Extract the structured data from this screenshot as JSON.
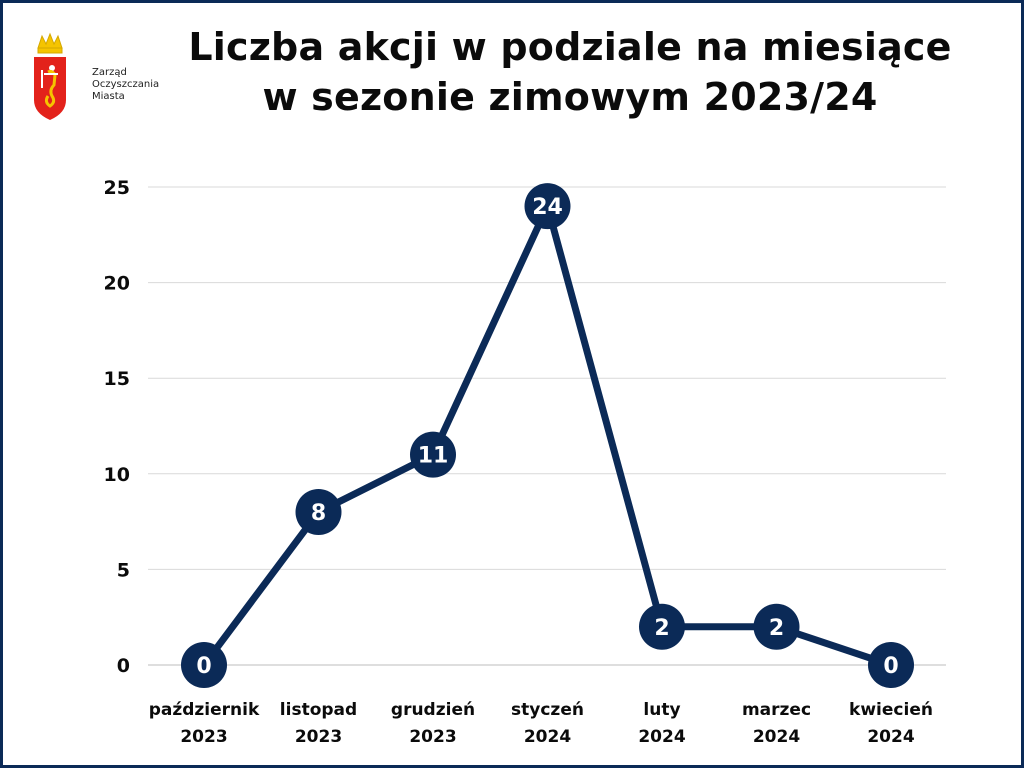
{
  "logo": {
    "text_lines": [
      "Zarząd",
      "Oczyszczania",
      "Miasta"
    ]
  },
  "title": {
    "line1": "Liczba akcji w podziale na miesiące",
    "line2": "w sezonie zimowym 2023/24"
  },
  "colors": {
    "series": "#0b2a57",
    "frame": "#0b2a57",
    "grid": "#d9d9d9",
    "text": "#0b0b0b",
    "logo_red": "#e3221b",
    "logo_gold": "#f5c400"
  },
  "chart_data": {
    "type": "line",
    "title": "Liczba akcji w podziale na miesiące w sezonie zimowym 2023/24",
    "xlabel": "",
    "ylabel": "",
    "ylim": [
      0,
      25
    ],
    "yticks": [
      0,
      5,
      10,
      15,
      20,
      25
    ],
    "grid": true,
    "categories": [
      [
        "październik",
        "2023"
      ],
      [
        "listopad",
        "2023"
      ],
      [
        "grudzień",
        "2023"
      ],
      [
        "styczeń",
        "2024"
      ],
      [
        "luty",
        "2024"
      ],
      [
        "marzec",
        "2024"
      ],
      [
        "kwiecień",
        "2024"
      ]
    ],
    "series": [
      {
        "values": [
          0,
          8,
          11,
          24,
          2,
          2,
          0
        ]
      }
    ]
  }
}
